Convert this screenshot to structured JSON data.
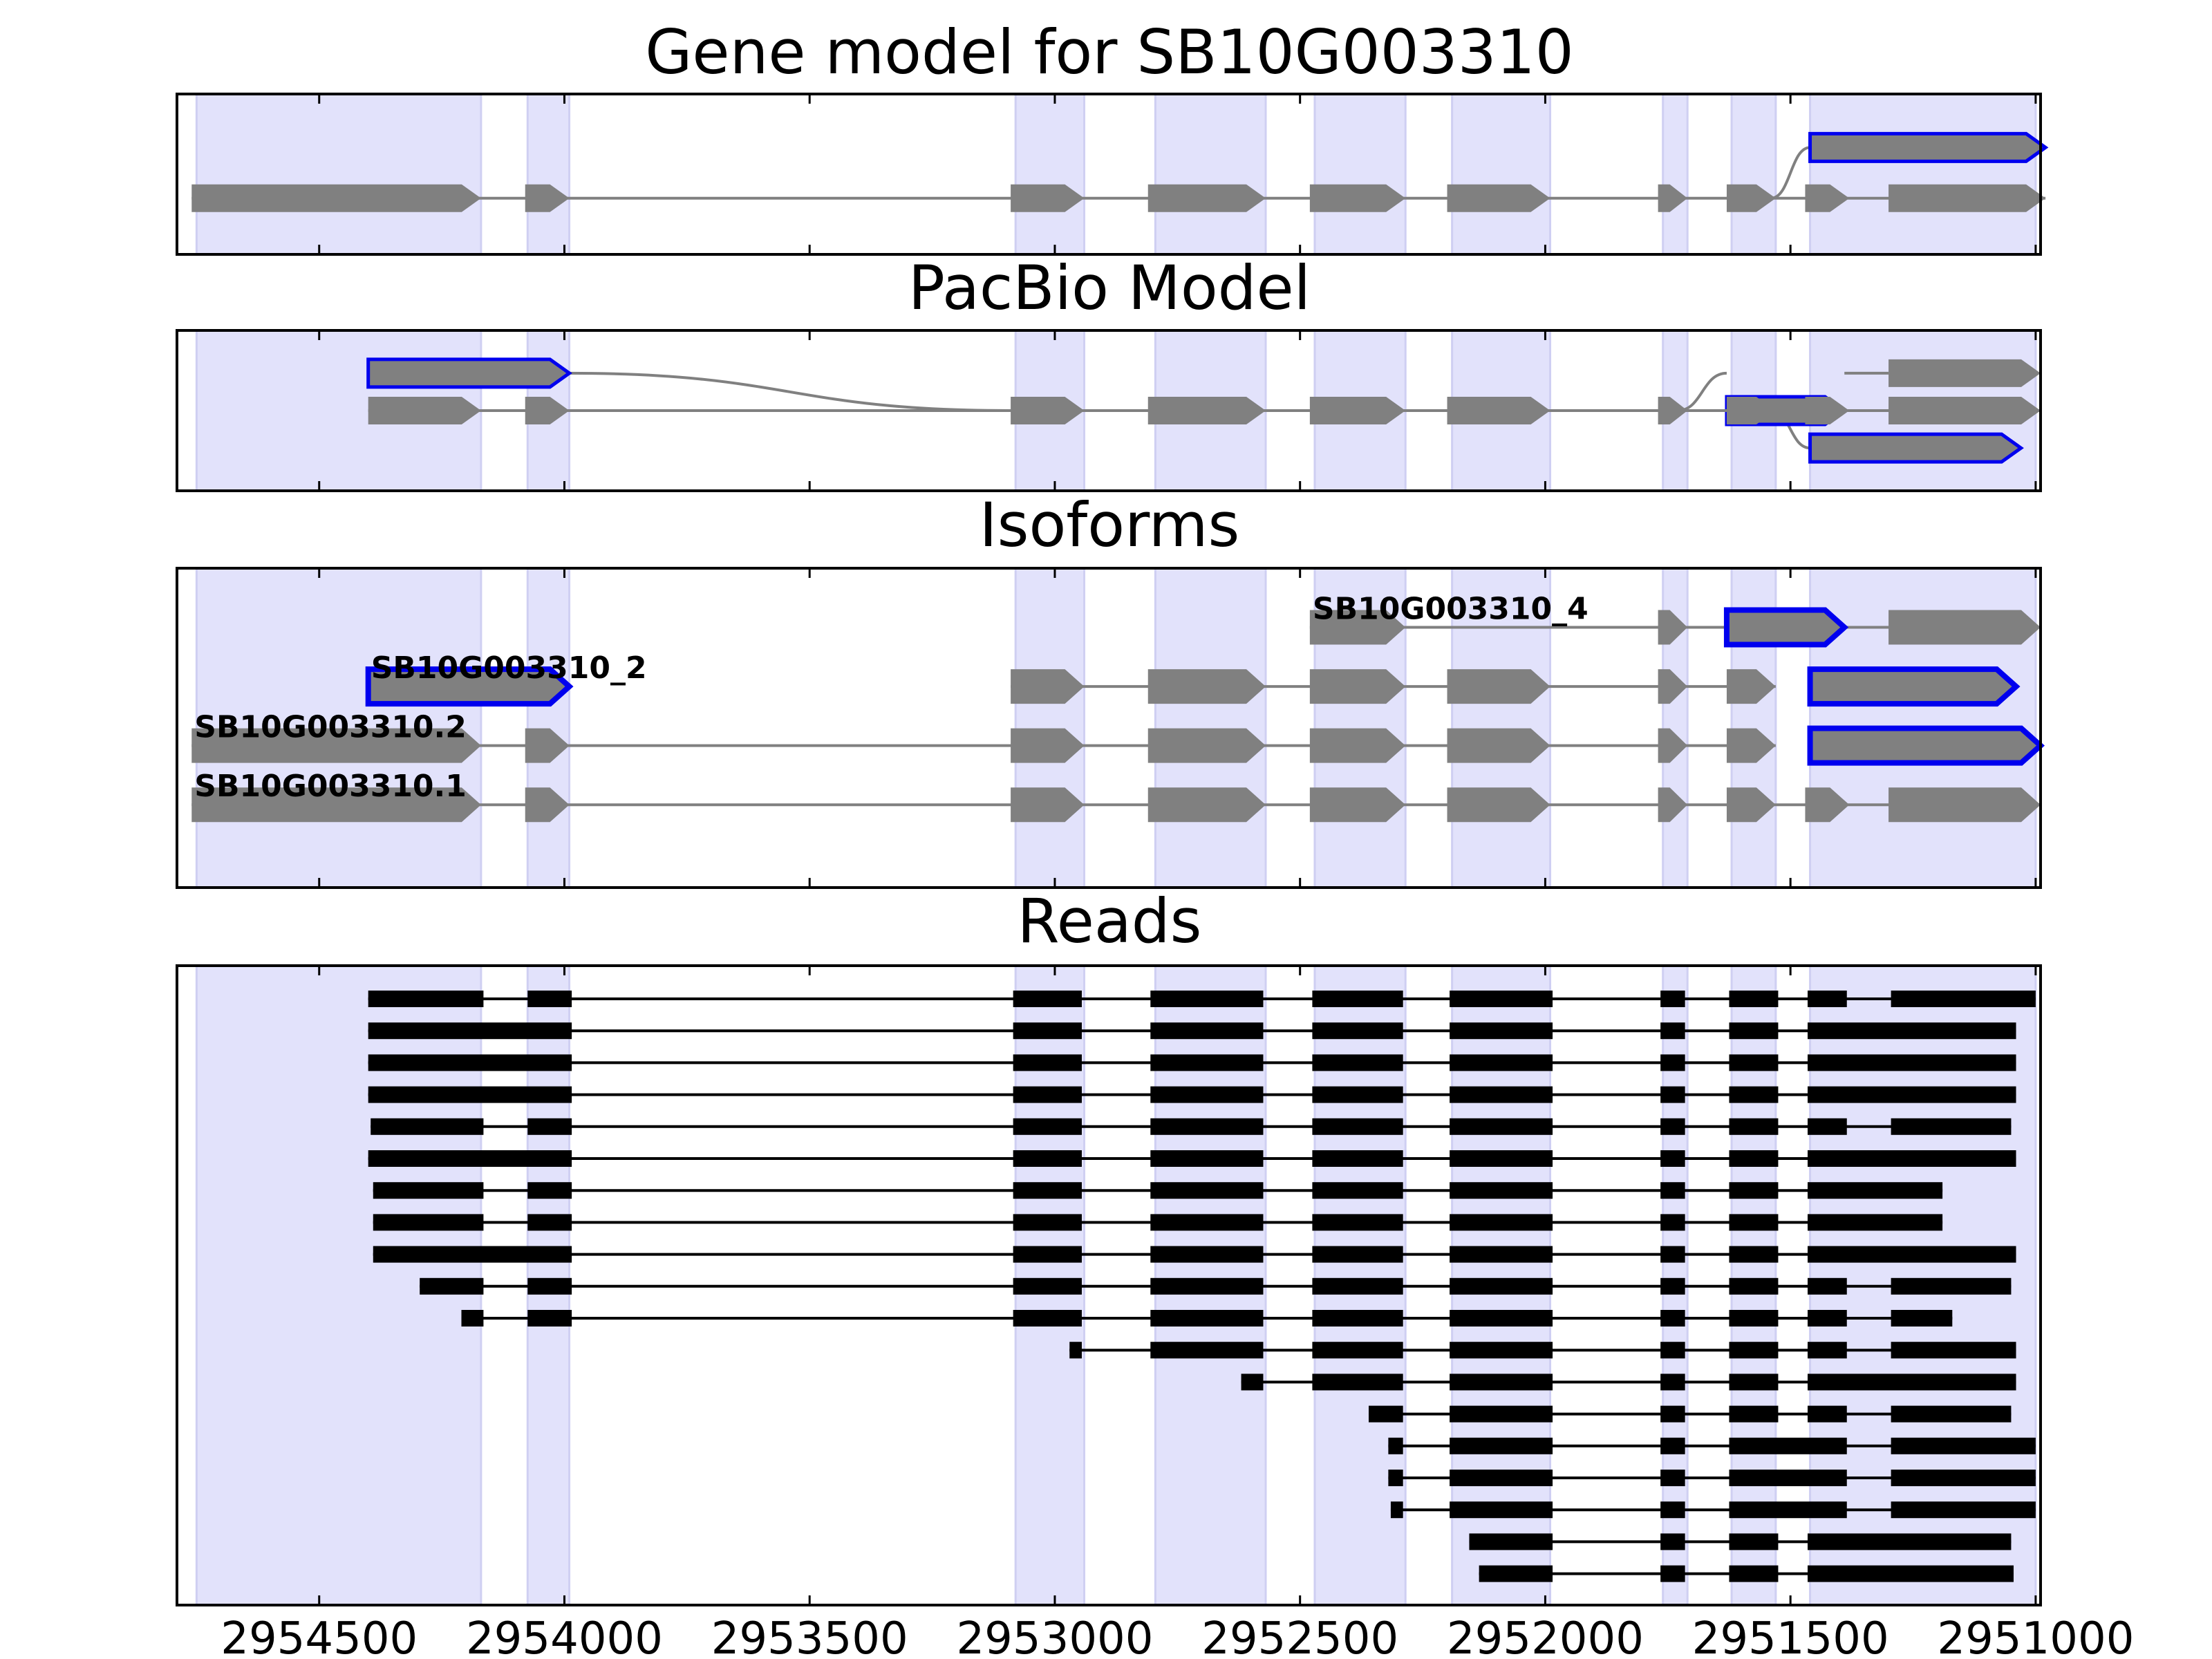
{
  "colors": {
    "exon_fill": "#808080",
    "highlight_stroke": "#0000ee",
    "intron": "#808080",
    "band": "#e2e2fb",
    "band_edge": "#cfcff2",
    "read": "#000000",
    "axis": "#000000"
  },
  "xaxis": {
    "reversed": true,
    "xlim": [
      2954790,
      2950990
    ],
    "ticks": [
      2954500,
      2954000,
      2953500,
      2953000,
      2952500,
      2952000,
      2951500,
      2951000
    ],
    "tick_labels": [
      "2954500",
      "2954000",
      "2953500",
      "2953000",
      "2952500",
      "2952000",
      "2951500",
      "2951000"
    ]
  },
  "shaded_regions": [
    [
      2954750,
      2954170
    ],
    [
      2954075,
      2953990
    ],
    [
      2953080,
      2952940
    ],
    [
      2952795,
      2952570
    ],
    [
      2952470,
      2952285
    ],
    [
      2952190,
      2951990
    ],
    [
      2951760,
      2951710
    ],
    [
      2951620,
      2951530
    ],
    [
      2951460,
      2951000
    ]
  ],
  "panels": [
    {
      "title": "Gene model for SB10G003310",
      "ylim": [
        0,
        3
      ],
      "tracks": [
        {
          "y": 2.0,
          "label": "",
          "highlight": true,
          "exons": [
            [
              2951460,
              2950980
            ]
          ]
        },
        {
          "y": 1.05,
          "label": "",
          "highlight": false,
          "exons": [
            [
              2954760,
              2954170
            ],
            [
              2954080,
              2953990
            ],
            [
              2953090,
              2952940
            ],
            [
              2952810,
              2952570
            ],
            [
              2952480,
              2952285
            ],
            [
              2952200,
              2951990
            ],
            [
              2951770,
              2951710
            ],
            [
              2951630,
              2951530
            ],
            [
              2951470,
              2951380
            ],
            [
              2951300,
              2950980
            ]
          ]
        }
      ],
      "connectors": [
        [
          2951540,
          1.05,
          2951460,
          2.0
        ]
      ]
    },
    {
      "title": "PacBio Model",
      "ylim": [
        0,
        3
      ],
      "tracks": [
        {
          "y": 2.2,
          "label": "",
          "highlight": true,
          "exons": [
            [
              2954400,
              2953990
            ]
          ]
        },
        {
          "y": 1.5,
          "label": "",
          "highlight": true,
          "exons": [
            [
              2951630,
              2951390
            ]
          ]
        },
        {
          "y": 2.2,
          "label": "",
          "highlight": false,
          "exons": [
            [
              2951300,
              2950990
            ]
          ]
        },
        {
          "y": 1.5,
          "label": "",
          "highlight": false,
          "exons": [
            [
              2954400,
              2954170
            ],
            [
              2954080,
              2953990
            ],
            [
              2953090,
              2952940
            ],
            [
              2952810,
              2952570
            ],
            [
              2952480,
              2952285
            ],
            [
              2952200,
              2951990
            ],
            [
              2951770,
              2951710
            ],
            [
              2951630,
              2951530
            ],
            [
              2951470,
              2951380
            ],
            [
              2951300,
              2950990
            ]
          ]
        },
        {
          "y": 0.8,
          "label": "",
          "highlight": true,
          "exons": [
            [
              2951460,
              2951030
            ]
          ]
        }
      ],
      "connectors": [
        [
          2953990,
          2.2,
          2953090,
          1.5
        ],
        [
          2951730,
          1.5,
          2951630,
          2.2
        ],
        [
          2951390,
          2.2,
          2951300,
          2.2
        ],
        [
          2951540,
          1.5,
          2951460,
          0.8
        ]
      ]
    },
    {
      "title": "Isoforms",
      "ylim": [
        0,
        5.4
      ],
      "tracks": [
        {
          "y": 4.4,
          "label": "SB10G003310_4",
          "highlight": false,
          "exons": [
            [
              2952480,
              2952285
            ],
            [
              2951770,
              2951710
            ],
            [
              2951300,
              2950990
            ]
          ]
        },
        {
          "y": 4.4,
          "label": "",
          "highlight": true,
          "exons": [
            [
              2951630,
              2951390
            ]
          ]
        },
        {
          "y": 3.4,
          "label": "SB10G003310_2",
          "highlight": true,
          "exons": [
            [
              2954400,
              2953990
            ]
          ]
        },
        {
          "y": 3.4,
          "label": "",
          "highlight": false,
          "exons": [
            [
              2953090,
              2952940
            ],
            [
              2952810,
              2952570
            ],
            [
              2952480,
              2952285
            ],
            [
              2952200,
              2951990
            ],
            [
              2951770,
              2951710
            ],
            [
              2951630,
              2951530
            ]
          ]
        },
        {
          "y": 3.4,
          "label": "",
          "highlight": true,
          "exons": [
            [
              2951460,
              2951040
            ]
          ]
        },
        {
          "y": 2.4,
          "label": "SB10G003310.2",
          "highlight": false,
          "exons": [
            [
              2954760,
              2954170
            ],
            [
              2954080,
              2953990
            ],
            [
              2953090,
              2952940
            ],
            [
              2952810,
              2952570
            ],
            [
              2952480,
              2952285
            ],
            [
              2952200,
              2951990
            ],
            [
              2951770,
              2951710
            ],
            [
              2951630,
              2951530
            ]
          ]
        },
        {
          "y": 2.4,
          "label": "",
          "highlight": true,
          "exons": [
            [
              2951460,
              2950990
            ]
          ]
        },
        {
          "y": 1.4,
          "label": "SB10G003310.1",
          "highlight": false,
          "exons": [
            [
              2954760,
              2954170
            ],
            [
              2954080,
              2953990
            ],
            [
              2953090,
              2952940
            ],
            [
              2952810,
              2952570
            ],
            [
              2952480,
              2952285
            ],
            [
              2952200,
              2951990
            ],
            [
              2951770,
              2951710
            ],
            [
              2951630,
              2951530
            ],
            [
              2951470,
              2951380
            ],
            [
              2951300,
              2950990
            ]
          ]
        }
      ],
      "connectors": []
    }
  ],
  "reads_panel": {
    "title": "Reads",
    "reads": [
      [
        [
          2954400,
          2954165
        ],
        [
          2954075,
          2953985
        ],
        [
          2953085,
          2952945
        ],
        [
          2952805,
          2952575
        ],
        [
          2952475,
          2952290
        ],
        [
          2952195,
          2951985
        ],
        [
          2951765,
          2951715
        ],
        [
          2951625,
          2951525
        ],
        [
          2951465,
          2951385
        ],
        [
          2951295,
          2951000
        ]
      ],
      [
        [
          2954400,
          2953985
        ],
        [
          2953085,
          2952945
        ],
        [
          2952805,
          2952575
        ],
        [
          2952475,
          2952290
        ],
        [
          2952195,
          2951985
        ],
        [
          2951765,
          2951715
        ],
        [
          2951625,
          2951525
        ],
        [
          2951465,
          2951040
        ]
      ],
      [
        [
          2954400,
          2953985
        ],
        [
          2953085,
          2952945
        ],
        [
          2952805,
          2952575
        ],
        [
          2952475,
          2952290
        ],
        [
          2952195,
          2951985
        ],
        [
          2951765,
          2951715
        ],
        [
          2951625,
          2951525
        ],
        [
          2951465,
          2951040
        ]
      ],
      [
        [
          2954400,
          2953985
        ],
        [
          2953085,
          2952945
        ],
        [
          2952805,
          2952575
        ],
        [
          2952475,
          2952290
        ],
        [
          2952195,
          2951985
        ],
        [
          2951765,
          2951715
        ],
        [
          2951625,
          2951525
        ],
        [
          2951465,
          2951040
        ]
      ],
      [
        [
          2954395,
          2954165
        ],
        [
          2954075,
          2953985
        ],
        [
          2953085,
          2952945
        ],
        [
          2952805,
          2952575
        ],
        [
          2952475,
          2952290
        ],
        [
          2952195,
          2951985
        ],
        [
          2951765,
          2951715
        ],
        [
          2951625,
          2951525
        ],
        [
          2951465,
          2951385
        ],
        [
          2951295,
          2951050
        ]
      ],
      [
        [
          2954400,
          2953985
        ],
        [
          2953085,
          2952945
        ],
        [
          2952805,
          2952575
        ],
        [
          2952475,
          2952290
        ],
        [
          2952195,
          2951985
        ],
        [
          2951765,
          2951715
        ],
        [
          2951625,
          2951525
        ],
        [
          2951465,
          2951040
        ]
      ],
      [
        [
          2954390,
          2954165
        ],
        [
          2954075,
          2953985
        ],
        [
          2953085,
          2952945
        ],
        [
          2952805,
          2952575
        ],
        [
          2952475,
          2952290
        ],
        [
          2952195,
          2951985
        ],
        [
          2951765,
          2951715
        ],
        [
          2951625,
          2951525
        ],
        [
          2951465,
          2951190
        ]
      ],
      [
        [
          2954390,
          2954165
        ],
        [
          2954075,
          2953985
        ],
        [
          2953085,
          2952945
        ],
        [
          2952805,
          2952575
        ],
        [
          2952475,
          2952290
        ],
        [
          2952195,
          2951985
        ],
        [
          2951765,
          2951715
        ],
        [
          2951625,
          2951525
        ],
        [
          2951465,
          2951190
        ]
      ],
      [
        [
          2954390,
          2953985
        ],
        [
          2953085,
          2952945
        ],
        [
          2952805,
          2952575
        ],
        [
          2952475,
          2952290
        ],
        [
          2952195,
          2951985
        ],
        [
          2951765,
          2951715
        ],
        [
          2951625,
          2951525
        ],
        [
          2951465,
          2951040
        ]
      ],
      [
        [
          2954295,
          2954165
        ],
        [
          2954075,
          2953985
        ],
        [
          2953085,
          2952945
        ],
        [
          2952805,
          2952575
        ],
        [
          2952475,
          2952290
        ],
        [
          2952195,
          2951985
        ],
        [
          2951765,
          2951715
        ],
        [
          2951625,
          2951525
        ],
        [
          2951465,
          2951385
        ],
        [
          2951295,
          2951050
        ]
      ],
      [
        [
          2954210,
          2954165
        ],
        [
          2954075,
          2953985
        ],
        [
          2953085,
          2952945
        ],
        [
          2952805,
          2952575
        ],
        [
          2952475,
          2952290
        ],
        [
          2952195,
          2951985
        ],
        [
          2951765,
          2951715
        ],
        [
          2951625,
          2951525
        ],
        [
          2951465,
          2951385
        ],
        [
          2951295,
          2951170
        ]
      ],
      [
        [
          2952970,
          2952945
        ],
        [
          2952805,
          2952575
        ],
        [
          2952475,
          2952290
        ],
        [
          2952195,
          2951985
        ],
        [
          2951765,
          2951715
        ],
        [
          2951625,
          2951525
        ],
        [
          2951465,
          2951385
        ],
        [
          2951295,
          2951040
        ]
      ],
      [
        [
          2952620,
          2952575
        ],
        [
          2952475,
          2952290
        ],
        [
          2952195,
          2951985
        ],
        [
          2951765,
          2951715
        ],
        [
          2951625,
          2951525
        ],
        [
          2951465,
          2951040
        ]
      ],
      [
        [
          2952360,
          2952290
        ],
        [
          2952195,
          2951985
        ],
        [
          2951765,
          2951715
        ],
        [
          2951625,
          2951525
        ],
        [
          2951465,
          2951385
        ],
        [
          2951295,
          2951050
        ]
      ],
      [
        [
          2952320,
          2952290
        ],
        [
          2952195,
          2951985
        ],
        [
          2951765,
          2951715
        ],
        [
          2951625,
          2951385
        ],
        [
          2951295,
          2951000
        ]
      ],
      [
        [
          2952320,
          2952290
        ],
        [
          2952195,
          2951985
        ],
        [
          2951765,
          2951715
        ],
        [
          2951625,
          2951385
        ],
        [
          2951295,
          2951000
        ]
      ],
      [
        [
          2952315,
          2952290
        ],
        [
          2952195,
          2951985
        ],
        [
          2951765,
          2951715
        ],
        [
          2951625,
          2951385
        ],
        [
          2951295,
          2951000
        ]
      ],
      [
        [
          2952155,
          2951985
        ],
        [
          2951765,
          2951715
        ],
        [
          2951625,
          2951525
        ],
        [
          2951465,
          2951050
        ]
      ],
      [
        [
          2952135,
          2951985
        ],
        [
          2951765,
          2951715
        ],
        [
          2951625,
          2951525
        ],
        [
          2951465,
          2951045
        ]
      ]
    ]
  }
}
